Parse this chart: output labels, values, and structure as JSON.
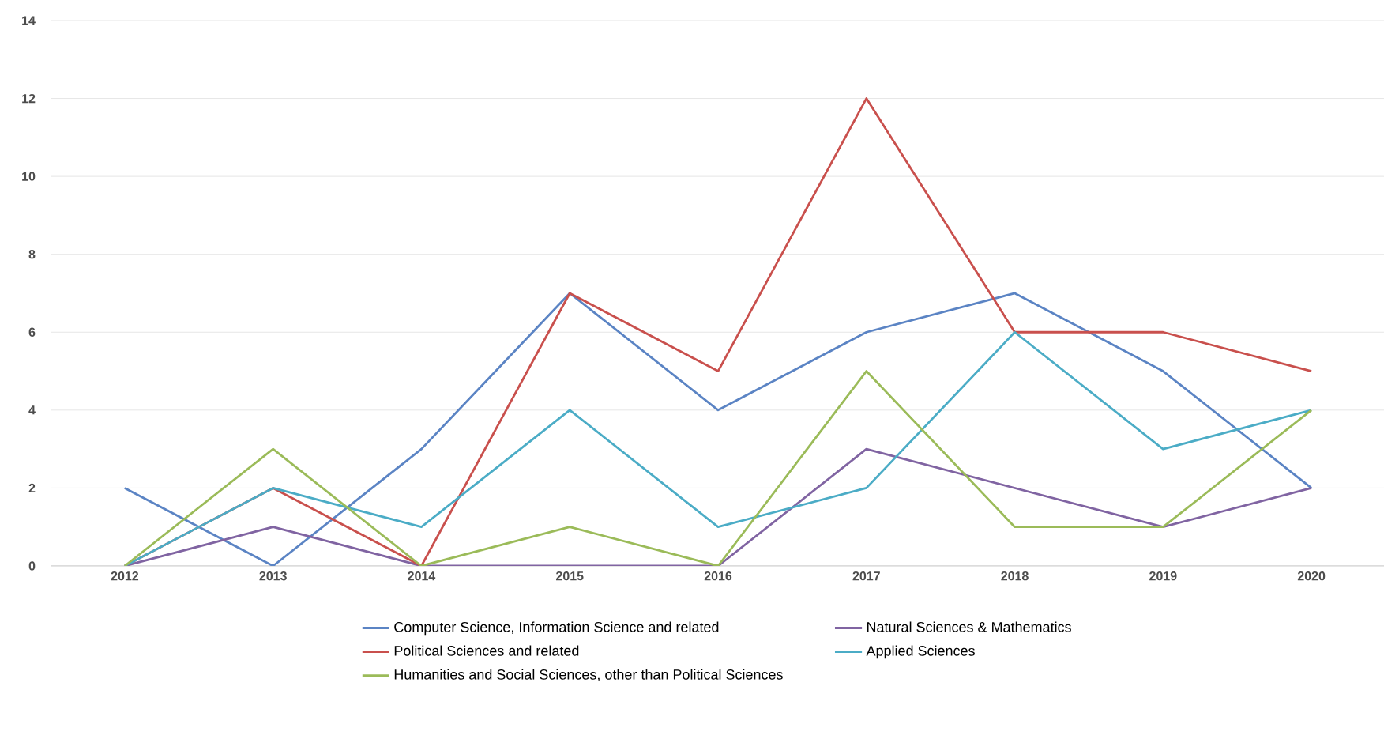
{
  "chart_data": {
    "type": "line",
    "categories": [
      "2012",
      "2013",
      "2014",
      "2015",
      "2016",
      "2017",
      "2018",
      "2019",
      "2020"
    ],
    "series": [
      {
        "name": "Computer Science, Information Science and related",
        "color": "#5b84c4",
        "values": [
          2,
          0,
          3,
          7,
          4,
          6,
          7,
          5,
          2
        ]
      },
      {
        "name": "Natural Sciences & Mathematics",
        "color": "#8064a2",
        "values": [
          0,
          1,
          0,
          0,
          0,
          3,
          2,
          1,
          2
        ]
      },
      {
        "name": "Political Sciences and related",
        "color": "#c9504d",
        "values": [
          0,
          2,
          0,
          7,
          5,
          12,
          6,
          6,
          5
        ]
      },
      {
        "name": "Applied Sciences",
        "color": "#4bacc6",
        "values": [
          0,
          2,
          1,
          4,
          1,
          2,
          6,
          3,
          4
        ]
      },
      {
        "name": "Humanities and Social Sciences, other than Political Sciences",
        "color": "#9bbb59",
        "values": [
          0,
          3,
          0,
          1,
          0,
          5,
          1,
          1,
          4
        ]
      }
    ],
    "ylim": [
      0,
      14
    ],
    "yticks": [
      0,
      2,
      4,
      6,
      8,
      10,
      12,
      14
    ],
    "grid": "y",
    "legend": "bottom",
    "marker": "none",
    "line_style": "solid"
  }
}
